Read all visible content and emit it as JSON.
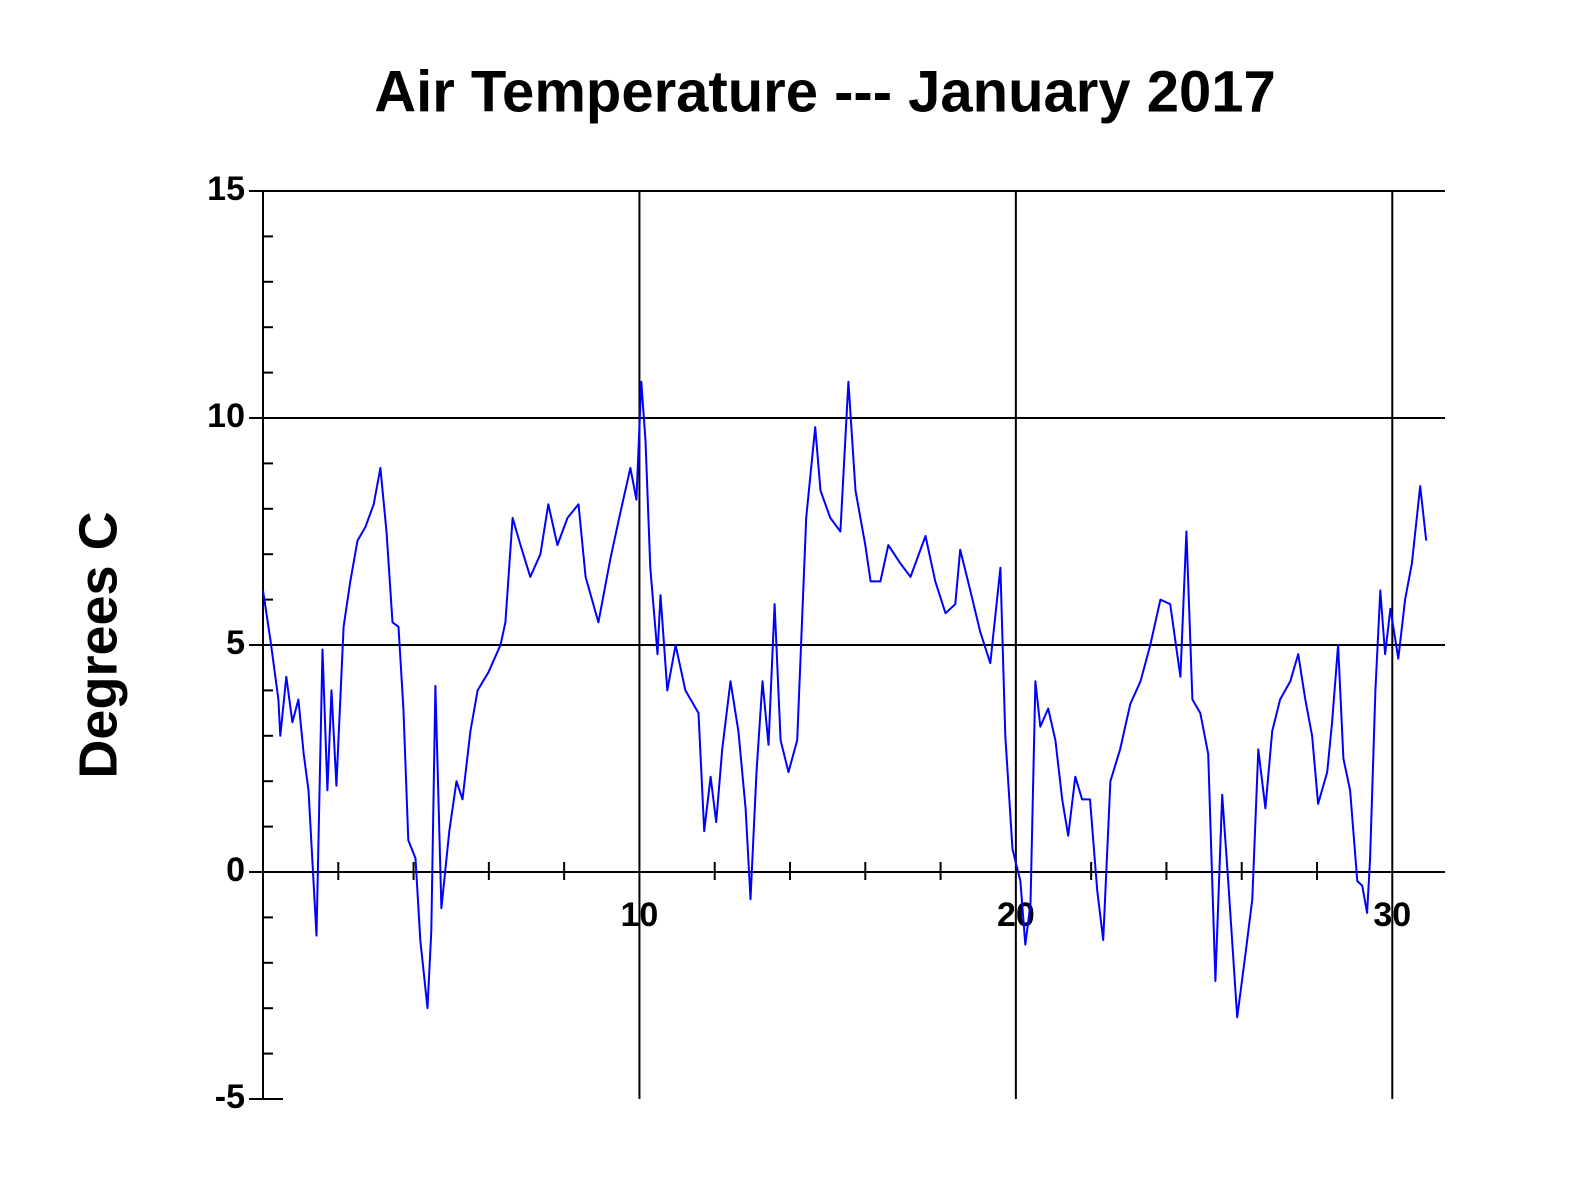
{
  "chart_data": {
    "type": "line",
    "title": "Air Temperature --- January 2017",
    "y_label": "Degrees C",
    "xlim": [
      0,
      31.4
    ],
    "ylim": [
      -5,
      15
    ],
    "xticks": [
      10,
      20,
      30
    ],
    "yticks": [
      -5,
      0,
      5,
      10,
      15
    ],
    "x_minor_ticks": [
      2,
      4,
      6,
      8,
      12,
      14,
      16,
      18,
      22,
      24,
      26,
      28
    ],
    "y_minor_ticks": [
      -4,
      -3,
      -2,
      -1,
      1,
      2,
      3,
      4,
      6,
      7,
      8,
      9,
      11,
      12,
      13,
      14
    ],
    "grid": true,
    "series": [
      {
        "name": "Air Temperature",
        "color": "#0000ff",
        "x": [
          0.0,
          0.2,
          0.41,
          0.46,
          0.62,
          0.78,
          0.94,
          1.08,
          1.21,
          1.42,
          1.58,
          1.71,
          1.82,
          1.95,
          2.14,
          2.32,
          2.51,
          2.72,
          2.94,
          3.12,
          3.28,
          3.44,
          3.6,
          3.73,
          3.86,
          4.05,
          4.18,
          4.37,
          4.47,
          4.58,
          4.74,
          4.95,
          5.14,
          5.3,
          5.51,
          5.7,
          5.99,
          6.31,
          6.44,
          6.63,
          6.84,
          7.1,
          7.37,
          7.58,
          7.82,
          8.09,
          8.38,
          8.57,
          8.91,
          9.23,
          9.49,
          9.76,
          9.92,
          10.05,
          10.16,
          10.29,
          10.48,
          10.56,
          10.74,
          10.96,
          11.22,
          11.57,
          11.72,
          11.89,
          12.04,
          12.2,
          12.42,
          12.63,
          12.82,
          12.95,
          13.11,
          13.27,
          13.43,
          13.59,
          13.75,
          13.96,
          14.19,
          14.43,
          14.67,
          14.81,
          15.07,
          15.34,
          15.55,
          15.74,
          16.0,
          16.14,
          16.4,
          16.61,
          16.93,
          17.2,
          17.6,
          17.86,
          18.13,
          18.39,
          18.52,
          18.79,
          19.05,
          19.32,
          19.59,
          19.72,
          19.91,
          20.12,
          20.25,
          20.39,
          20.52,
          20.65,
          20.86,
          21.05,
          21.23,
          21.39,
          21.58,
          21.76,
          21.97,
          22.16,
          22.32,
          22.51,
          22.77,
          23.04,
          23.31,
          23.57,
          23.84,
          24.1,
          24.37,
          24.53,
          24.69,
          24.9,
          25.11,
          25.3,
          25.48,
          25.64,
          25.88,
          26.1,
          26.28,
          26.44,
          26.63,
          26.81,
          27.02,
          27.29,
          27.5,
          27.69,
          27.87,
          28.03,
          28.27,
          28.4,
          28.56,
          28.7,
          28.88,
          29.07,
          29.2,
          29.33,
          29.41,
          29.55,
          29.68,
          29.81,
          29.95,
          30.16,
          30.34,
          30.52,
          30.74,
          30.9
        ],
        "values": [
          6.2,
          5.1,
          3.8,
          3.0,
          4.3,
          3.3,
          3.8,
          2.6,
          1.8,
          -1.4,
          4.9,
          1.8,
          4.0,
          1.9,
          5.4,
          6.4,
          7.3,
          7.6,
          8.1,
          8.9,
          7.5,
          5.5,
          5.4,
          3.6,
          0.7,
          0.3,
          -1.5,
          -3.0,
          -1.3,
          4.1,
          -0.8,
          0.9,
          2.0,
          1.6,
          3.1,
          4.0,
          4.4,
          5.0,
          5.5,
          7.8,
          7.2,
          6.5,
          7.0,
          8.1,
          7.2,
          7.8,
          8.1,
          6.5,
          5.5,
          6.9,
          7.9,
          8.9,
          8.2,
          10.8,
          9.5,
          6.7,
          4.8,
          6.1,
          4.0,
          5.0,
          4.0,
          3.5,
          0.9,
          2.1,
          1.1,
          2.7,
          4.2,
          3.1,
          1.4,
          -0.6,
          2.2,
          4.2,
          2.8,
          5.9,
          2.9,
          2.2,
          2.9,
          7.8,
          9.8,
          8.4,
          7.8,
          7.5,
          10.8,
          8.4,
          7.2,
          6.4,
          6.4,
          7.2,
          6.8,
          6.5,
          7.4,
          6.4,
          5.7,
          5.9,
          7.1,
          6.2,
          5.3,
          4.6,
          6.7,
          3.0,
          0.5,
          -0.2,
          -1.6,
          -0.7,
          4.2,
          3.2,
          3.6,
          2.9,
          1.6,
          0.8,
          2.1,
          1.6,
          1.6,
          -0.4,
          -1.5,
          2.0,
          2.7,
          3.7,
          4.2,
          5.0,
          6.0,
          5.9,
          4.3,
          7.5,
          3.8,
          3.5,
          2.6,
          -2.4,
          1.7,
          -0.2,
          -3.2,
          -1.8,
          -0.6,
          2.7,
          1.4,
          3.1,
          3.8,
          4.2,
          4.8,
          3.8,
          3.0,
          1.5,
          2.2,
          3.3,
          5.0,
          2.5,
          1.8,
          -0.2,
          -0.3,
          -0.9,
          0.3,
          4.0,
          6.2,
          4.8,
          5.8,
          4.7,
          6.0,
          6.8,
          8.5,
          7.3
        ]
      }
    ]
  }
}
